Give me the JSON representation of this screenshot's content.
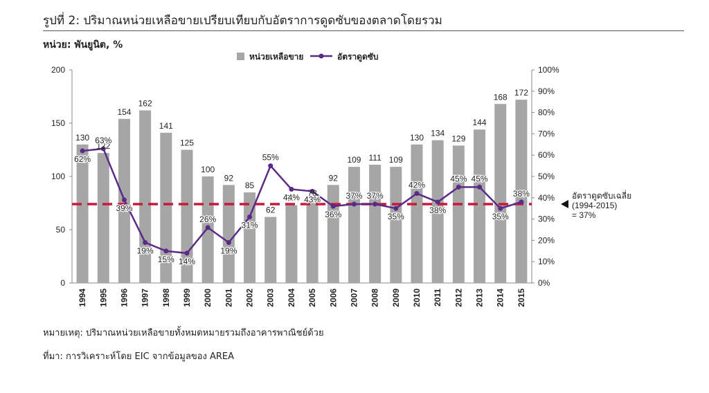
{
  "header": {
    "title": "รูปที่ 2: ปริมาณหน่วยเหลือขายเปรียบเทียบกับอัตราการดูดซับของตลาดโดยรวม",
    "unit_label": "หน่วย: พันยูนิต, %"
  },
  "notes": {
    "remark": "หมายเหตุ: ปริมาณหน่วยเหลือขายทั้งหมดหมายรวมถึงอาคารพาณิชย์ด้วย",
    "source": "ที่มา: การวิเคราะห์โดย EIC จากข้อมูลของ AREA"
  },
  "chart_data": {
    "type": "bar",
    "categories": [
      "1994",
      "1995",
      "1996",
      "1997",
      "1998",
      "1999",
      "2000",
      "2001",
      "2002",
      "2003",
      "2004",
      "2005",
      "2006",
      "2007",
      "2008",
      "2009",
      "2010",
      "2011",
      "2012",
      "2013",
      "2014",
      "2015"
    ],
    "series": [
      {
        "name": "หน่วยเหลือขาย",
        "type": "bar",
        "axis": "left",
        "color": "#a6a6a6",
        "values": [
          130,
          122,
          154,
          162,
          141,
          125,
          100,
          92,
          85,
          62,
          73,
          78,
          92,
          109,
          111,
          109,
          130,
          134,
          129,
          144,
          168,
          172
        ],
        "labels": [
          "130",
          "122",
          "154",
          "162",
          "141",
          "125",
          "100",
          "92",
          "85",
          "62",
          "73",
          "78",
          "92",
          "109",
          "111",
          "109",
          "130",
          "134",
          "129",
          "144",
          "168",
          "172"
        ]
      },
      {
        "name": "อัตราดูดซับ",
        "type": "line",
        "axis": "right",
        "color": "#5b2a86",
        "values": [
          62,
          63,
          39,
          19,
          15,
          14,
          26,
          19,
          31,
          55,
          44,
          43,
          36,
          37,
          37,
          35,
          42,
          38,
          45,
          45,
          35,
          38
        ],
        "labels": [
          "62%",
          "63%",
          "39%",
          "19%",
          "15%",
          "14%",
          "26%",
          "19%",
          "31%",
          "55%",
          "44%",
          "43%",
          "36%",
          "37%",
          "37%",
          "35%",
          "42%",
          "38%",
          "45%",
          "45%",
          "35%",
          "38%"
        ]
      }
    ],
    "reference_line": {
      "axis": "right",
      "value": 37,
      "color": "#c8193c",
      "style": "dashed",
      "label_lines": [
        "อัตราดูดซับเฉลี่ย",
        "(1994-2015)",
        "= 37%"
      ]
    },
    "y_left": {
      "ylim": [
        0,
        200
      ],
      "ticks": [
        0,
        50,
        100,
        150,
        200
      ],
      "tick_labels": [
        "0",
        "50",
        "100",
        "150",
        "200"
      ]
    },
    "y_right": {
      "ylim": [
        0,
        100
      ],
      "ticks": [
        0,
        10,
        20,
        30,
        40,
        50,
        60,
        70,
        80,
        90,
        100
      ],
      "tick_labels": [
        "0%",
        "10%",
        "20%",
        "30%",
        "40%",
        "50%",
        "60%",
        "70%",
        "80%",
        "90%",
        "100%"
      ]
    },
    "legend": {
      "placement": "top-center",
      "items": [
        {
          "label": "หน่วยเหลือขาย",
          "marker": "square",
          "color": "#a6a6a6"
        },
        {
          "label": "อัตราดูดซับ",
          "marker": "line-dot",
          "color": "#5b2a86"
        }
      ]
    },
    "grid": false
  }
}
